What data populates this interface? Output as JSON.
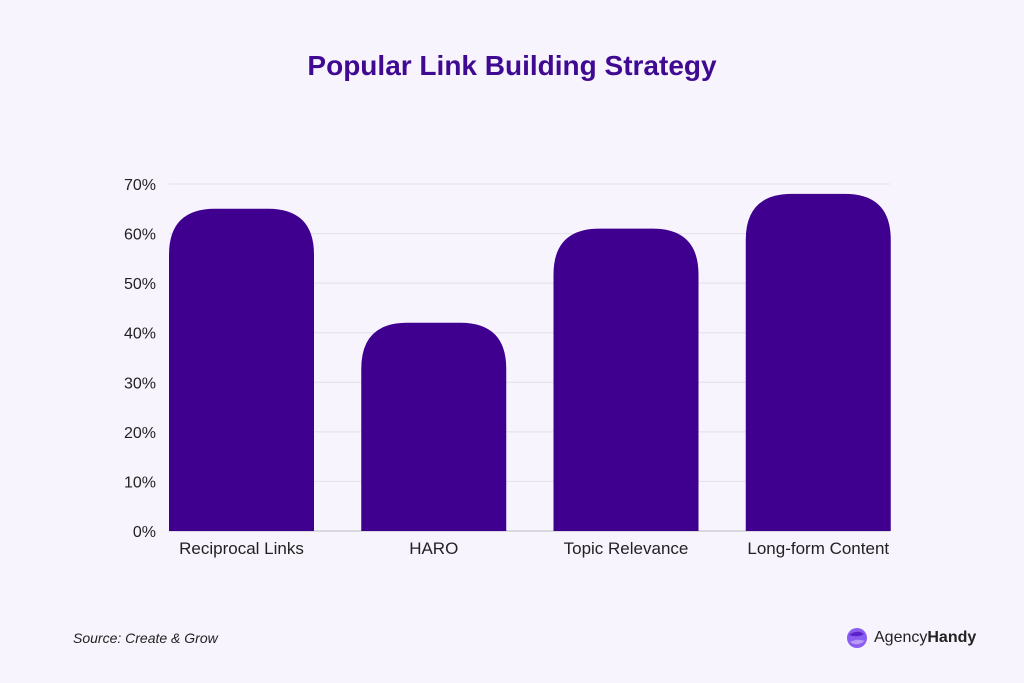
{
  "chart_data": {
    "type": "bar",
    "title": "Popular Link Building Strategy",
    "categories": [
      "Reciprocal Links",
      "HARO",
      "Topic Relevance",
      "Long-form Content"
    ],
    "values": [
      65,
      42,
      61,
      68
    ],
    "unit": "%",
    "ylim": [
      0,
      70
    ],
    "yticks": [
      "0%",
      "10%",
      "20%",
      "30%",
      "40%",
      "50%",
      "60%",
      "70%"
    ],
    "grid": true,
    "bar_color": "#3f0090"
  },
  "footer": {
    "source": "Source: Create & Grow",
    "logo_text_1": "Agency",
    "logo_text_2": "Handy"
  }
}
